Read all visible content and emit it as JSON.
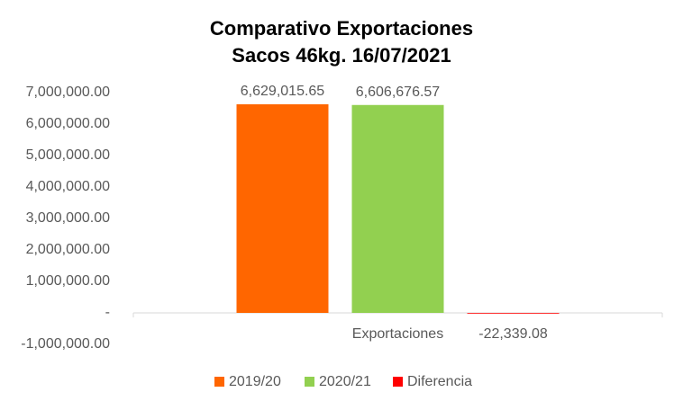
{
  "chart_data": {
    "type": "bar",
    "title": [
      "Comparativo  Exportaciones",
      "Sacos 46kg. 16/07/2021"
    ],
    "categories": [
      "Exportaciones"
    ],
    "series": [
      {
        "name": "2019/20",
        "color": "#ff6600",
        "values": [
          6629015.65
        ],
        "value_labels": [
          "6,629,015.65"
        ]
      },
      {
        "name": "2020/21",
        "color": "#92d050",
        "values": [
          6606676.57
        ],
        "value_labels": [
          "6,606,676.57"
        ]
      },
      {
        "name": "Diferencia",
        "color": "#ff0000",
        "values": [
          -22339.08
        ],
        "value_labels": [
          "-22,339.08"
        ]
      }
    ],
    "ylim": [
      -1000000,
      7000000
    ],
    "yticks": [
      {
        "value": 7000000,
        "label": "7,000,000.00"
      },
      {
        "value": 6000000,
        "label": "6,000,000.00"
      },
      {
        "value": 5000000,
        "label": "5,000,000.00"
      },
      {
        "value": 4000000,
        "label": "4,000,000.00"
      },
      {
        "value": 3000000,
        "label": "3,000,000.00"
      },
      {
        "value": 2000000,
        "label": "2,000,000.00"
      },
      {
        "value": 1000000,
        "label": "1,000,000.00"
      },
      {
        "value": 0,
        "label": "-"
      },
      {
        "value": -1000000,
        "label": "-1,000,000.00"
      }
    ],
    "grid": false,
    "legend": "bottom"
  }
}
